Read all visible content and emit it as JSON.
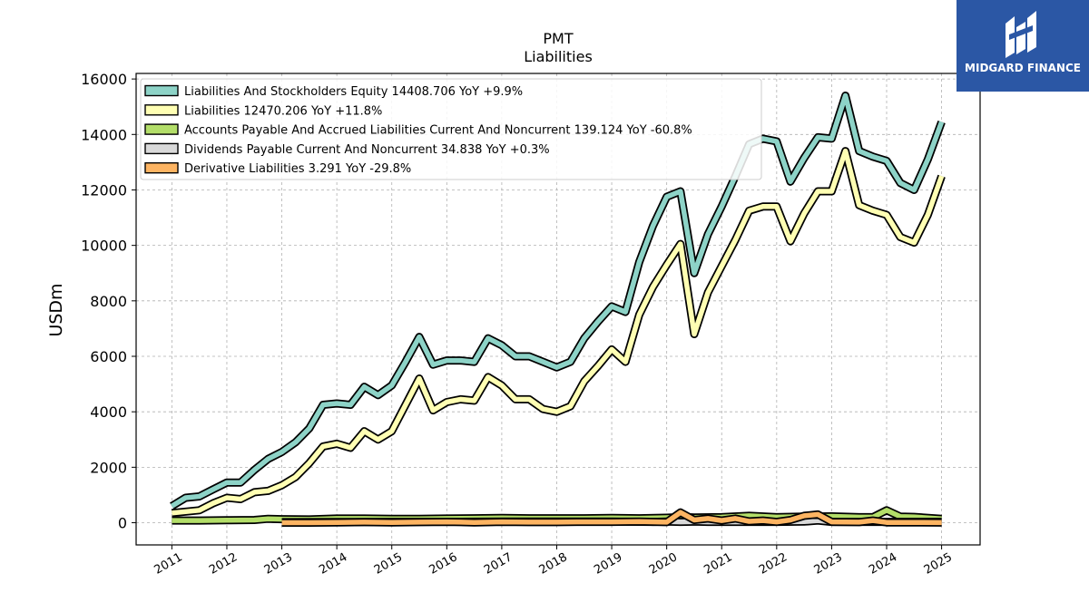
{
  "chart_data": {
    "type": "line",
    "title": "PMT",
    "subtitle": "Liabilities",
    "ylabel": "USDm",
    "xlabel": "",
    "ylim": [
      -800,
      16200
    ],
    "xlim": [
      2010.35,
      2025.7
    ],
    "yticks": [
      0,
      2000,
      4000,
      6000,
      8000,
      10000,
      12000,
      14000,
      16000
    ],
    "xticks": [
      "2011",
      "2012",
      "2013",
      "2014",
      "2015",
      "2016",
      "2017",
      "2018",
      "2019",
      "2020",
      "2021",
      "2022",
      "2023",
      "2024",
      "2025"
    ],
    "grid": true,
    "legend_position": "top-left",
    "series": [
      {
        "name": "Liabilities And Stockholders Equity",
        "legend": "Liabilities And Stockholders Equity  14408.706 YoY +9.9%",
        "color": "#8dd3c7",
        "x": [
          2011.0,
          2011.25,
          2011.5,
          2011.75,
          2012.0,
          2012.25,
          2012.5,
          2012.75,
          2013.0,
          2013.25,
          2013.5,
          2013.75,
          2014.0,
          2014.25,
          2014.5,
          2014.75,
          2015.0,
          2015.25,
          2015.5,
          2015.75,
          2016.0,
          2016.25,
          2016.5,
          2016.75,
          2017.0,
          2017.25,
          2017.5,
          2017.75,
          2018.0,
          2018.25,
          2018.5,
          2018.75,
          2019.0,
          2019.25,
          2019.5,
          2019.75,
          2020.0,
          2020.25,
          2020.5,
          2020.75,
          2021.0,
          2021.25,
          2021.5,
          2021.75,
          2022.0,
          2022.25,
          2022.5,
          2022.75,
          2023.0,
          2023.25,
          2023.5,
          2023.75,
          2024.0,
          2024.25,
          2024.5,
          2024.75,
          2025.0
        ],
        "values": [
          600,
          900,
          950,
          1200,
          1450,
          1450,
          1900,
          2300,
          2550,
          2900,
          3400,
          4250,
          4300,
          4250,
          4900,
          4600,
          4950,
          5800,
          6700,
          5700,
          5850,
          5850,
          5800,
          6650,
          6400,
          6000,
          6000,
          5800,
          5600,
          5800,
          6650,
          7250,
          7800,
          7600,
          9400,
          10700,
          11750,
          11950,
          9000,
          10400,
          11400,
          12500,
          13650,
          13850,
          13750,
          12300,
          13150,
          13900,
          13850,
          15400,
          13400,
          13200,
          13050,
          12250,
          12000,
          13100,
          14450
        ]
      },
      {
        "name": "Liabilities",
        "legend": "Liabilities  12470.206 YoY +11.8%",
        "color": "#ffffb3",
        "x": [
          2011.0,
          2011.25,
          2011.5,
          2011.75,
          2012.0,
          2012.25,
          2012.5,
          2012.75,
          2013.0,
          2013.25,
          2013.5,
          2013.75,
          2014.0,
          2014.25,
          2014.5,
          2014.75,
          2015.0,
          2015.25,
          2015.5,
          2015.75,
          2016.0,
          2016.25,
          2016.5,
          2016.75,
          2017.0,
          2017.25,
          2017.5,
          2017.75,
          2018.0,
          2018.25,
          2018.5,
          2018.75,
          2019.0,
          2019.25,
          2019.5,
          2019.75,
          2020.0,
          2020.25,
          2020.5,
          2020.75,
          2021.0,
          2021.25,
          2021.5,
          2021.75,
          2022.0,
          2022.25,
          2022.5,
          2022.75,
          2023.0,
          2023.25,
          2023.5,
          2023.75,
          2024.0,
          2024.25,
          2024.5,
          2024.75,
          2025.0
        ],
        "values": [
          350,
          400,
          450,
          700,
          900,
          850,
          1100,
          1150,
          1350,
          1650,
          2150,
          2750,
          2850,
          2700,
          3300,
          3000,
          3300,
          4250,
          5200,
          4050,
          4350,
          4450,
          4400,
          5250,
          4950,
          4450,
          4450,
          4100,
          4000,
          4200,
          5100,
          5650,
          6250,
          5800,
          7500,
          8500,
          9300,
          10050,
          6800,
          8300,
          9250,
          10200,
          11250,
          11400,
          11400,
          10150,
          11150,
          11950,
          11950,
          13400,
          11450,
          11250,
          11100,
          10300,
          10100,
          11100,
          12500
        ]
      },
      {
        "name": "Accounts Payable And Accrued Liabilities Current And Noncurrent",
        "legend": "Accounts Payable And Accrued Liabilities Current And Noncurrent  139.124 YoY -60.8%",
        "color": "#b3de69",
        "x": [
          2011.0,
          2011.5,
          2012.0,
          2012.5,
          2012.75,
          2013.0,
          2013.5,
          2014.0,
          2014.5,
          2015.0,
          2015.5,
          2016.0,
          2016.5,
          2017.0,
          2017.5,
          2018.0,
          2018.5,
          2019.0,
          2019.5,
          2020.0,
          2020.25,
          2020.5,
          2021.0,
          2021.5,
          2022.0,
          2022.5,
          2023.0,
          2023.5,
          2023.75,
          2024.0,
          2024.25,
          2024.5,
          2025.0
        ],
        "values": [
          80,
          80,
          90,
          100,
          140,
          130,
          120,
          150,
          150,
          140,
          140,
          150,
          160,
          170,
          160,
          160,
          160,
          170,
          160,
          180,
          200,
          190,
          200,
          250,
          200,
          220,
          230,
          200,
          200,
          450,
          220,
          210,
          140
        ]
      },
      {
        "name": "Dividends Payable Current And Noncurrent",
        "legend": "Dividends Payable Current And Noncurrent  34.838 YoY +0.3%",
        "color": "#d9d9d9",
        "x": [
          2013.0,
          2014.0,
          2015.0,
          2016.0,
          2017.0,
          2018.0,
          2019.0,
          2019.75,
          2020.0,
          2020.25,
          2020.5,
          2020.75,
          2021.0,
          2021.5,
          2022.0,
          2022.5,
          2022.75,
          2023.0,
          2023.5,
          2024.0,
          2024.5,
          2025.0
        ],
        "values": [
          20,
          25,
          30,
          35,
          40,
          40,
          40,
          30,
          40,
          30,
          40,
          30,
          30,
          30,
          30,
          40,
          80,
          30,
          30,
          30,
          35,
          35
        ]
      },
      {
        "name": "Derivative Liabilities",
        "legend": "Derivative Liabilities  3.291 YoY -29.8%",
        "color": "#fdb462",
        "x": [
          2013.0,
          2013.5,
          2014.0,
          2014.5,
          2015.0,
          2015.5,
          2016.0,
          2016.5,
          2017.0,
          2017.5,
          2018.0,
          2018.5,
          2019.0,
          2019.5,
          2020.0,
          2020.25,
          2020.5,
          2020.75,
          2021.0,
          2021.25,
          2021.5,
          2021.75,
          2022.0,
          2022.25,
          2022.5,
          2022.75,
          2023.0,
          2023.5,
          2023.75,
          2024.0,
          2024.5,
          2025.0
        ],
        "values": [
          0,
          0,
          10,
          20,
          10,
          20,
          30,
          10,
          30,
          20,
          20,
          30,
          30,
          40,
          20,
          370,
          100,
          150,
          80,
          150,
          50,
          80,
          30,
          100,
          250,
          300,
          30,
          20,
          80,
          10,
          10,
          3
        ]
      }
    ]
  },
  "logo": {
    "text": "MIDGARD FINANCE"
  }
}
